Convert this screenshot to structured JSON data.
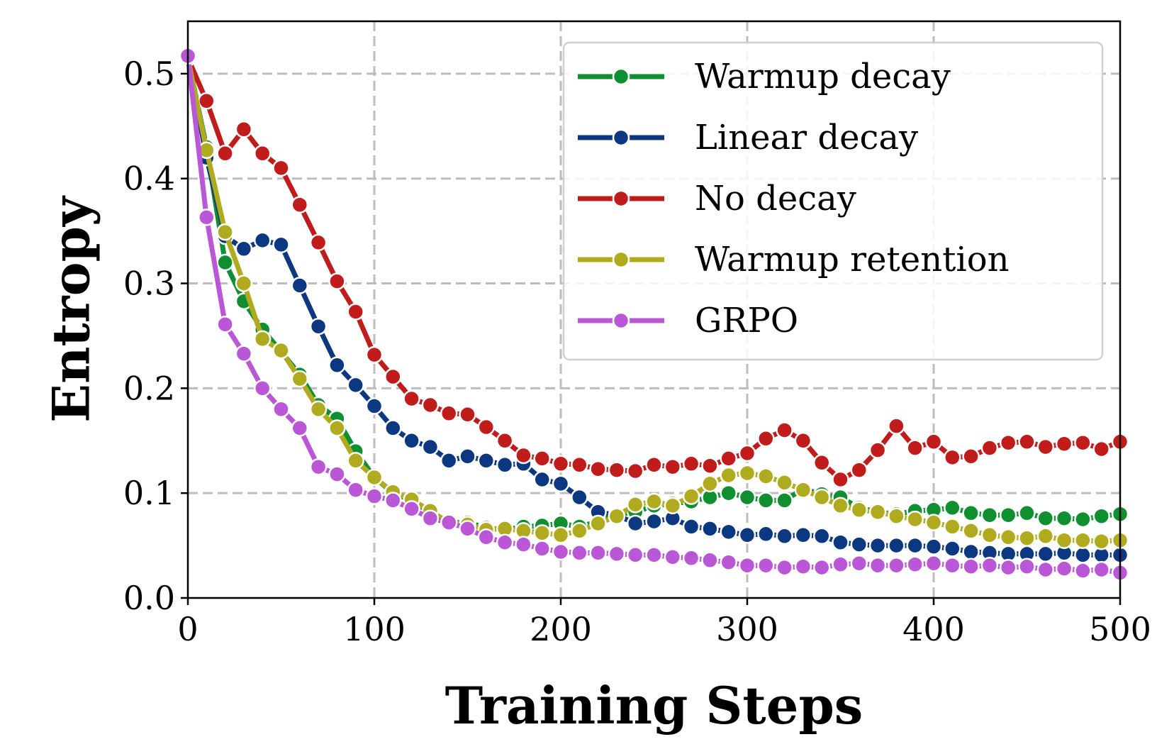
{
  "chart_data": {
    "type": "line",
    "title": "",
    "xlabel": "Training Steps",
    "ylabel": "Entropy",
    "xlim": [
      0,
      500
    ],
    "ylim": [
      0,
      0.55
    ],
    "xticks": [
      0,
      100,
      200,
      300,
      400,
      500
    ],
    "yticks": [
      0.0,
      0.1,
      0.2,
      0.3,
      0.4,
      0.5
    ],
    "xtick_labels": [
      "0",
      "100",
      "200",
      "300",
      "400",
      "500"
    ],
    "ytick_labels": [
      "0.0",
      "0.1",
      "0.2",
      "0.3",
      "0.4",
      "0.5"
    ],
    "grid": true,
    "legend_position": "top-right",
    "x": [
      0,
      10,
      20,
      30,
      40,
      50,
      60,
      70,
      80,
      90,
      100,
      110,
      120,
      130,
      140,
      150,
      160,
      170,
      180,
      190,
      200,
      210,
      220,
      230,
      240,
      250,
      260,
      270,
      280,
      290,
      300,
      310,
      320,
      330,
      340,
      350,
      360,
      370,
      380,
      390,
      400,
      410,
      420,
      430,
      440,
      450,
      460,
      470,
      480,
      490,
      500
    ],
    "series": [
      {
        "name": "Warmup decay",
        "color": "#0f8f2f",
        "values": [
          0.515,
          0.43,
          0.32,
          0.283,
          0.256,
          0.235,
          0.213,
          0.184,
          0.171,
          0.14,
          0.115,
          0.1,
          0.093,
          0.081,
          0.072,
          0.072,
          0.067,
          0.065,
          0.068,
          0.069,
          0.071,
          0.068,
          0.073,
          0.079,
          0.082,
          0.088,
          0.09,
          0.092,
          0.096,
          0.1,
          0.096,
          0.093,
          0.093,
          0.104,
          0.099,
          0.096,
          0.086,
          0.082,
          0.08,
          0.083,
          0.084,
          0.086,
          0.081,
          0.079,
          0.079,
          0.081,
          0.076,
          0.076,
          0.075,
          0.078,
          0.08
        ]
      },
      {
        "name": "Linear decay",
        "color": "#0b3880",
        "values": [
          0.515,
          0.42,
          0.345,
          0.333,
          0.341,
          0.337,
          0.298,
          0.259,
          0.222,
          0.203,
          0.183,
          0.162,
          0.15,
          0.144,
          0.131,
          0.135,
          0.131,
          0.127,
          0.128,
          0.113,
          0.109,
          0.096,
          0.082,
          0.079,
          0.071,
          0.073,
          0.076,
          0.068,
          0.066,
          0.063,
          0.06,
          0.061,
          0.059,
          0.06,
          0.059,
          0.053,
          0.051,
          0.05,
          0.05,
          0.05,
          0.049,
          0.047,
          0.044,
          0.043,
          0.042,
          0.042,
          0.042,
          0.043,
          0.041,
          0.041,
          0.041
        ]
      },
      {
        "name": "No decay",
        "color": "#c01c1c",
        "values": [
          0.515,
          0.474,
          0.424,
          0.447,
          0.424,
          0.41,
          0.375,
          0.339,
          0.302,
          0.273,
          0.232,
          0.211,
          0.19,
          0.184,
          0.176,
          0.175,
          0.163,
          0.15,
          0.136,
          0.133,
          0.128,
          0.127,
          0.123,
          0.122,
          0.121,
          0.127,
          0.125,
          0.128,
          0.126,
          0.133,
          0.138,
          0.152,
          0.16,
          0.15,
          0.129,
          0.113,
          0.122,
          0.141,
          0.164,
          0.143,
          0.149,
          0.134,
          0.135,
          0.143,
          0.148,
          0.149,
          0.144,
          0.147,
          0.148,
          0.142,
          0.149
        ]
      },
      {
        "name": "Warmup retention",
        "color": "#b0ab1e",
        "values": [
          0.515,
          0.427,
          0.349,
          0.3,
          0.247,
          0.236,
          0.209,
          0.18,
          0.162,
          0.131,
          0.115,
          0.101,
          0.094,
          0.083,
          0.072,
          0.07,
          0.065,
          0.066,
          0.064,
          0.062,
          0.06,
          0.064,
          0.071,
          0.078,
          0.089,
          0.092,
          0.088,
          0.097,
          0.109,
          0.117,
          0.119,
          0.116,
          0.11,
          0.103,
          0.096,
          0.088,
          0.084,
          0.082,
          0.078,
          0.075,
          0.072,
          0.068,
          0.064,
          0.06,
          0.058,
          0.057,
          0.059,
          0.055,
          0.055,
          0.054,
          0.055
        ]
      },
      {
        "name": "GRPO",
        "color": "#b957d6",
        "values": [
          0.517,
          0.363,
          0.261,
          0.233,
          0.2,
          0.18,
          0.162,
          0.125,
          0.118,
          0.103,
          0.097,
          0.093,
          0.085,
          0.076,
          0.072,
          0.066,
          0.058,
          0.053,
          0.051,
          0.047,
          0.044,
          0.043,
          0.043,
          0.042,
          0.041,
          0.041,
          0.039,
          0.038,
          0.036,
          0.034,
          0.031,
          0.031,
          0.029,
          0.03,
          0.029,
          0.032,
          0.033,
          0.031,
          0.031,
          0.032,
          0.033,
          0.031,
          0.03,
          0.031,
          0.029,
          0.03,
          0.027,
          0.028,
          0.026,
          0.027,
          0.024
        ]
      }
    ]
  }
}
